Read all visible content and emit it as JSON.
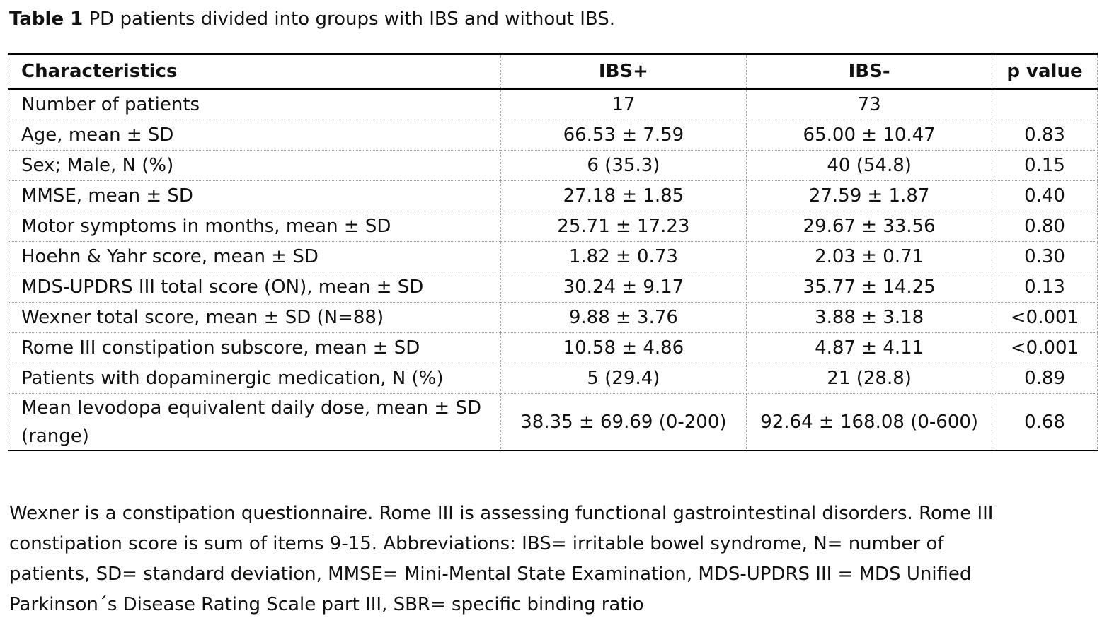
{
  "caption": {
    "label": "Table 1",
    "text": " PD patients divided into groups with IBS and without IBS."
  },
  "table": {
    "headers": [
      "Characteristics",
      "IBS+",
      "IBS-",
      "p value"
    ],
    "rows": [
      [
        "Number of patients",
        "17",
        "73",
        ""
      ],
      [
        "Age, mean ± SD",
        "66.53 ± 7.59",
        "65.00 ± 10.47",
        "0.83"
      ],
      [
        "Sex; Male, N (%)",
        "6 (35.3)",
        "40 (54.8)",
        "0.15"
      ],
      [
        "MMSE, mean ± SD",
        "27.18 ± 1.85",
        "27.59 ± 1.87",
        "0.40"
      ],
      [
        "Motor symptoms in months, mean ± SD",
        "25.71 ± 17.23",
        "29.67 ± 33.56",
        "0.80"
      ],
      [
        "Hoehn & Yahr score, mean ± SD",
        "1.82 ± 0.73",
        "2.03 ± 0.71",
        "0.30"
      ],
      [
        "MDS-UPDRS III total score (ON), mean ± SD",
        "30.24 ± 9.17",
        "35.77 ± 14.25",
        "0.13"
      ],
      [
        "Wexner total score, mean ± SD (N=88)",
        "9.88 ± 3.76",
        "3.88 ± 3.18",
        "<0.001"
      ],
      [
        "Rome III constipation subscore, mean ± SD",
        "10.58 ± 4.86",
        "4.87 ± 4.11",
        "<0.001"
      ],
      [
        "Patients with dopaminergic medication, N (%)",
        "5 (29.4)",
        "21 (28.8)",
        "0.89"
      ],
      [
        "Mean levodopa equivalent daily dose, mean ± SD (range)",
        "38.35 ± 69.69 (0-200)",
        "92.64 ± 168.08 (0-600)",
        "0.68"
      ]
    ]
  },
  "footnote": "Wexner is a constipation questionnaire. Rome III is assessing functional gastrointestinal disorders. Rome III constipation score is sum of items 9-15. Abbreviations: IBS= irritable bowel syndrome, N= number of patients, SD= standard deviation, MMSE= Mini-Mental State Examination, MDS-UPDRS III = MDS Unified Parkinson´s Disease Rating Scale part III, SBR= specific binding ratio"
}
